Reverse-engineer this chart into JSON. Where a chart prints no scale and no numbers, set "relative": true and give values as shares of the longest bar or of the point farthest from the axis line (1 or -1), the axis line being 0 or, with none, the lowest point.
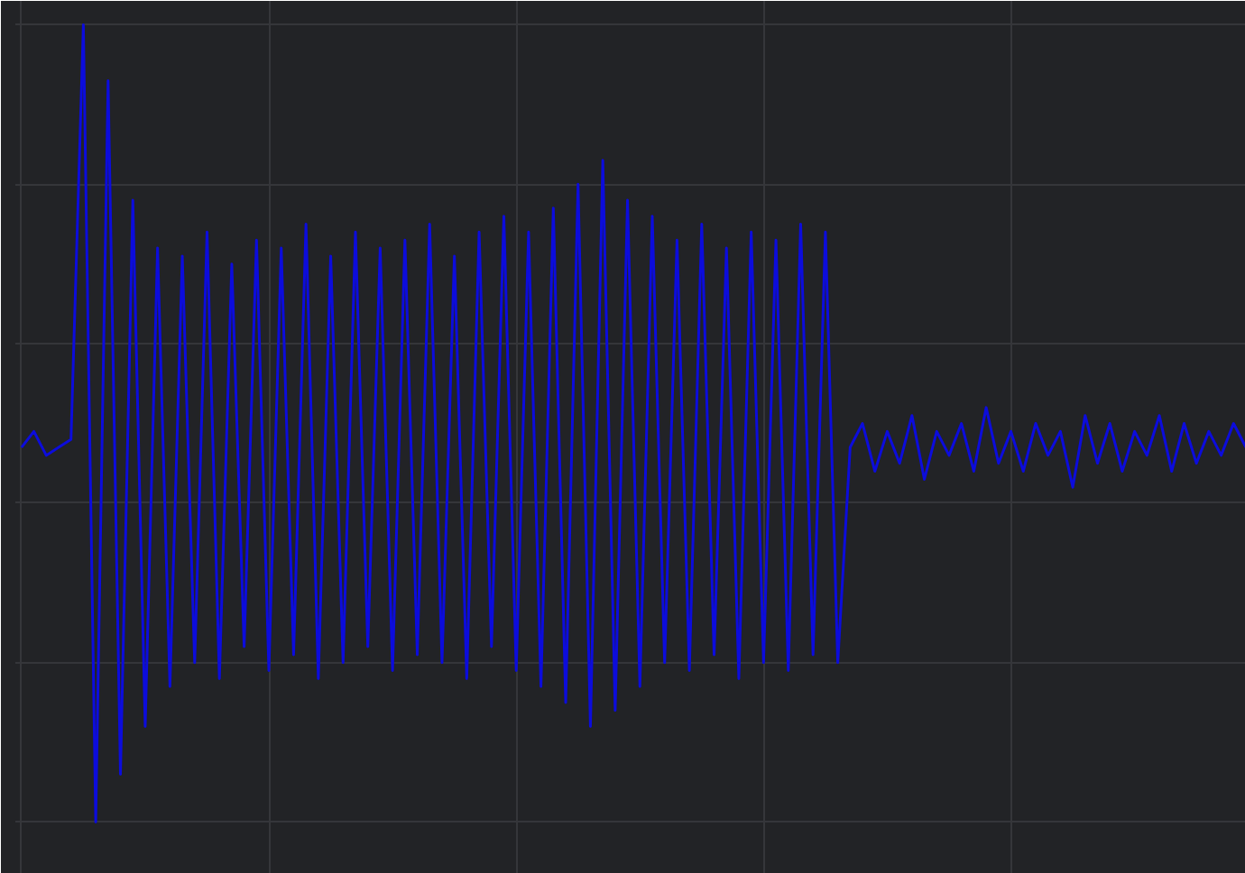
{
  "chart_data": {
    "type": "line",
    "relative": true,
    "grid": true,
    "categories": [
      null,
      null,
      null,
      null,
      null,
      null,
      null,
      null,
      null,
      null,
      null,
      null,
      null,
      null,
      null,
      null,
      null,
      null,
      null,
      null,
      null,
      null,
      null,
      null,
      null,
      null,
      null,
      null,
      null,
      null,
      null,
      null,
      null,
      null,
      null,
      null,
      null,
      null,
      null,
      null,
      null,
      null,
      null,
      null,
      null,
      null,
      null,
      null,
      null,
      null,
      null,
      null,
      null,
      null,
      null,
      null,
      null,
      null,
      null,
      null,
      null,
      null,
      null,
      null,
      null,
      null,
      null,
      null,
      null,
      null,
      null,
      null,
      null,
      null,
      null,
      null,
      null,
      null,
      null,
      null,
      null,
      null,
      null,
      null,
      null,
      null,
      null,
      null,
      null,
      null,
      null,
      null,
      null,
      null,
      null,
      null,
      null,
      null,
      null,
      null
    ],
    "series": [
      {
        "color": "#0c0cdc",
        "values": [
          0.47,
          0.49,
          0.46,
          0.47,
          0.48,
          1.0,
          0.0,
          0.93,
          0.06,
          0.78,
          0.12,
          0.72,
          0.17,
          0.71,
          0.2,
          0.74,
          0.18,
          0.7,
          0.22,
          0.73,
          0.19,
          0.72,
          0.21,
          0.75,
          0.18,
          0.71,
          0.2,
          0.74,
          0.22,
          0.72,
          0.19,
          0.73,
          0.21,
          0.75,
          0.2,
          0.71,
          0.18,
          0.74,
          0.22,
          0.76,
          0.19,
          0.74,
          0.17,
          0.77,
          0.15,
          0.8,
          0.12,
          0.83,
          0.14,
          0.78,
          0.17,
          0.76,
          0.2,
          0.73,
          0.19,
          0.75,
          0.21,
          0.72,
          0.18,
          0.74,
          0.2,
          0.73,
          0.19,
          0.75,
          0.21,
          0.74,
          0.2,
          0.47,
          0.5,
          0.44,
          0.49,
          0.45,
          0.51,
          0.43,
          0.49,
          0.46,
          0.5,
          0.44,
          0.52,
          0.45,
          0.49,
          0.44,
          0.5,
          0.46,
          0.49,
          0.42,
          0.51,
          0.45,
          0.5,
          0.44,
          0.49,
          0.46,
          0.51,
          0.44,
          0.5,
          0.45,
          0.49,
          0.46,
          0.5,
          0.47
        ]
      }
    ]
  }
}
